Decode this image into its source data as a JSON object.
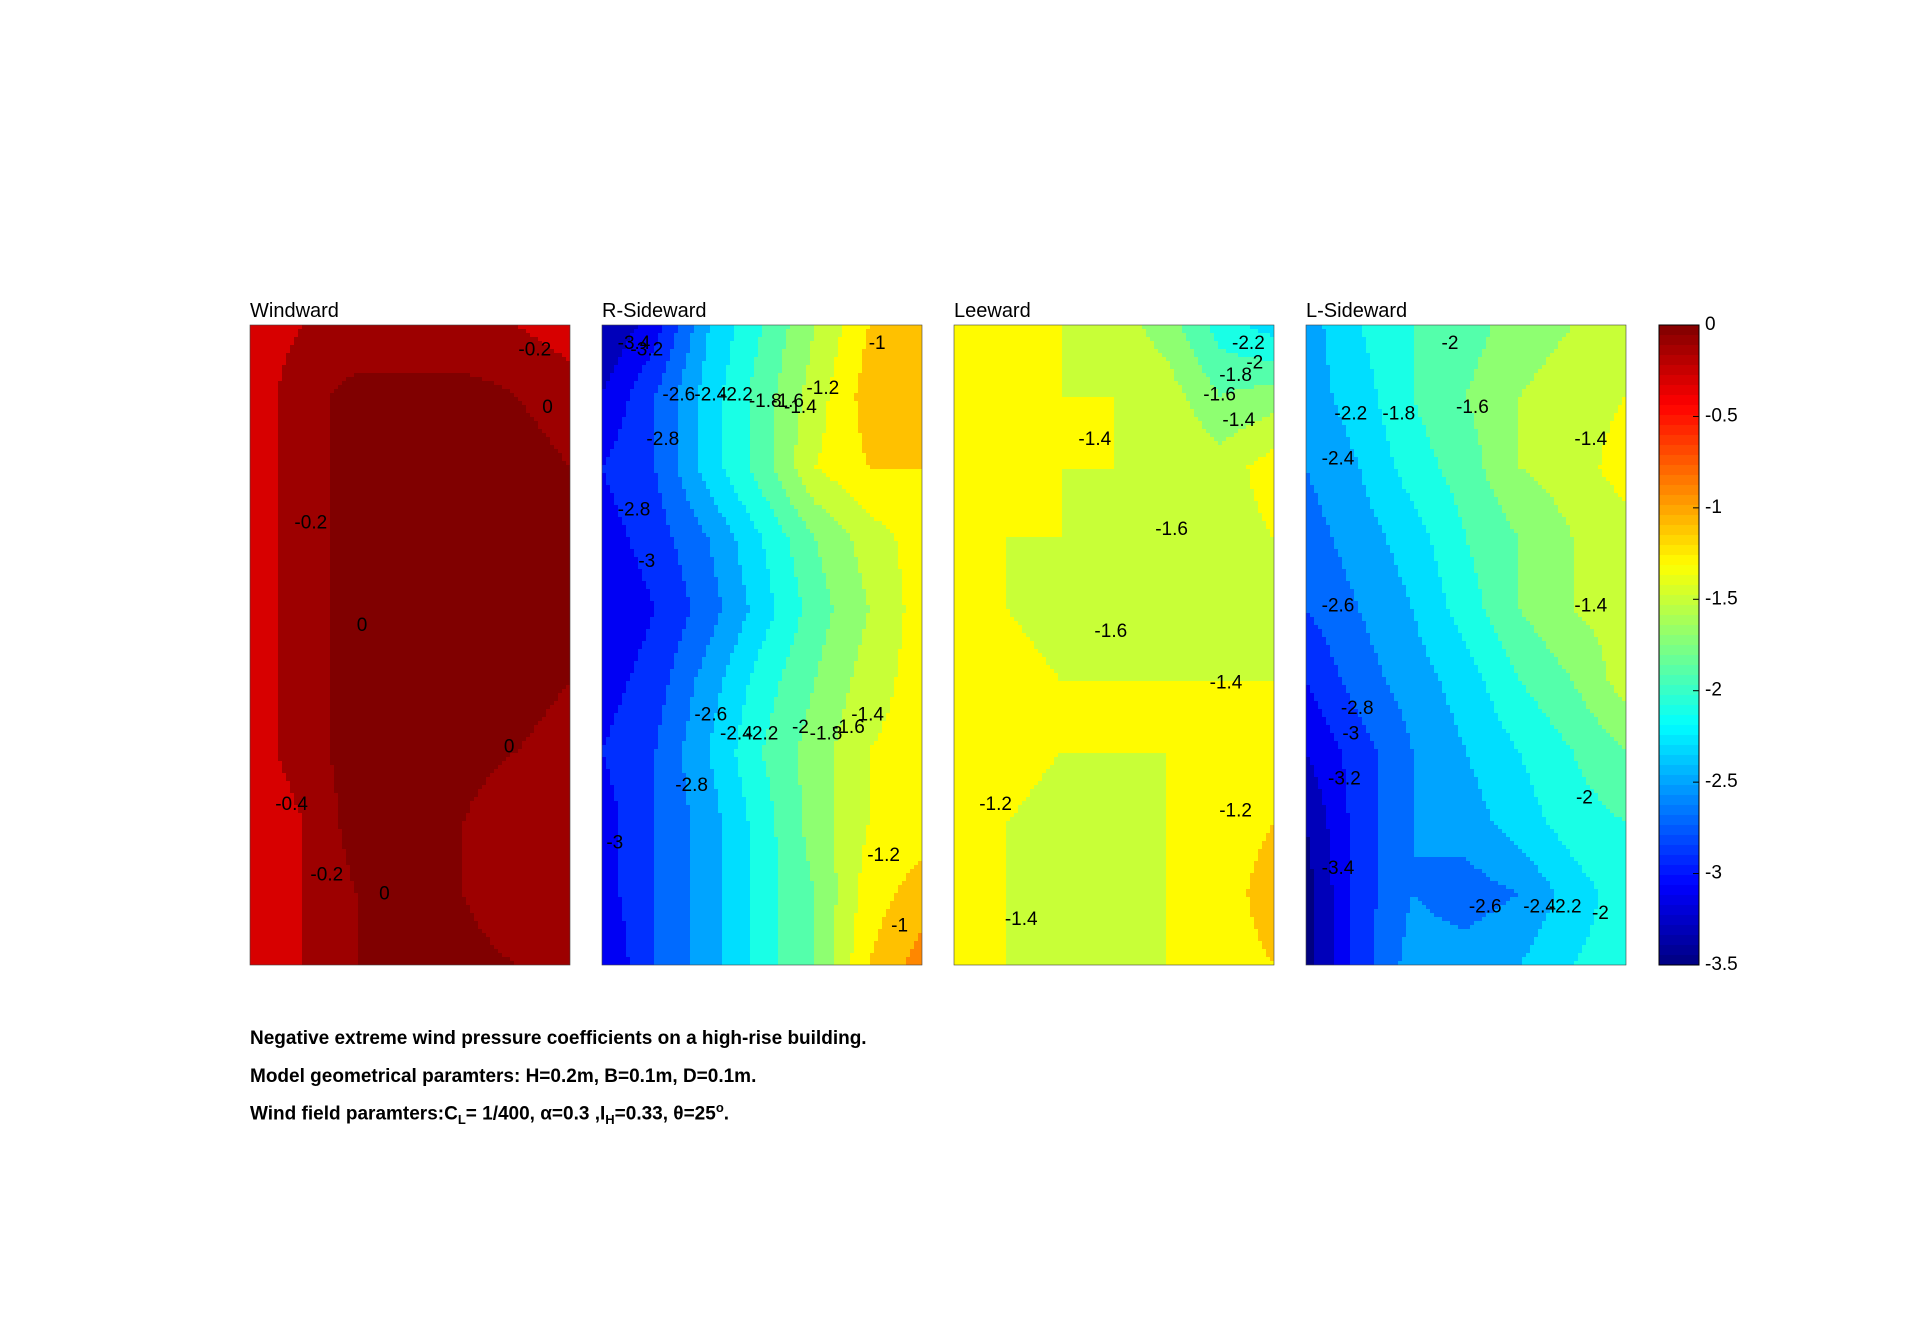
{
  "chart_data": {
    "type": "heatmap",
    "colorbar": {
      "min": -3.5,
      "max": 0,
      "ticks": [
        0,
        -0.5,
        -1,
        -1.5,
        -2,
        -2.5,
        -3,
        -3.5
      ],
      "tick_labels": [
        "0",
        "-0.5",
        "-1",
        "-1.5",
        "-2",
        "-2.5",
        "-3",
        "-3.5"
      ],
      "colormap": "jet"
    },
    "panels": [
      {
        "title": "Windward",
        "grid": [
          [
            -0.3,
            -0.2,
            -0.2,
            -0.2,
            -0.2,
            -0.2,
            -0.3
          ],
          [
            -0.3,
            -0.1,
            0.1,
            0.1,
            0.1,
            0.0,
            -0.1
          ],
          [
            -0.3,
            -0.1,
            0.1,
            0.1,
            0.1,
            0.1,
            0.0
          ],
          [
            -0.3,
            -0.1,
            0.1,
            0.1,
            0.1,
            0.1,
            0.0
          ],
          [
            -0.3,
            -0.1,
            0.1,
            0.1,
            0.1,
            0.1,
            0.0
          ],
          [
            -0.3,
            -0.1,
            0.1,
            0.1,
            0.1,
            0.1,
            0.0
          ],
          [
            -0.3,
            -0.1,
            0.1,
            0.1,
            0.1,
            0.0,
            -0.1
          ],
          [
            -0.4,
            -0.2,
            0.1,
            0.1,
            0.0,
            -0.2,
            -0.2
          ],
          [
            -0.4,
            -0.2,
            0.0,
            0.1,
            0.0,
            -0.2,
            -0.2
          ],
          [
            -0.3,
            -0.2,
            0.0,
            0.1,
            0.1,
            0.0,
            -0.1
          ]
        ],
        "contour_labels": [
          {
            "text": "-0.2",
            "x": 0.89,
            "y": 0.04
          },
          {
            "text": "0",
            "x": 0.93,
            "y": 0.13
          },
          {
            "text": "-0.2",
            "x": 0.19,
            "y": 0.31
          },
          {
            "text": "0",
            "x": 0.35,
            "y": 0.47
          },
          {
            "text": "0",
            "x": 0.81,
            "y": 0.66
          },
          {
            "text": "-0.4",
            "x": 0.13,
            "y": 0.75
          },
          {
            "text": "-0.2",
            "x": 0.24,
            "y": 0.86
          },
          {
            "text": "0",
            "x": 0.42,
            "y": 0.89
          }
        ]
      },
      {
        "title": "R-Sideward",
        "grid": [
          [
            -3.4,
            -3.1,
            -2.4,
            -2.0,
            -1.6,
            -1.2,
            -1.0
          ],
          [
            -3.2,
            -2.8,
            -2.3,
            -1.9,
            -1.5,
            -1.1,
            -1.0
          ],
          [
            -3.0,
            -2.8,
            -2.3,
            -1.9,
            -1.4,
            -1.2,
            -1.2
          ],
          [
            -3.1,
            -2.9,
            -2.6,
            -2.2,
            -1.8,
            -1.5,
            -1.3
          ],
          [
            -3.2,
            -3.0,
            -2.7,
            -2.3,
            -1.9,
            -1.6,
            -1.3
          ],
          [
            -3.1,
            -2.9,
            -2.5,
            -2.1,
            -1.8,
            -1.5,
            -1.3
          ],
          [
            -3.0,
            -2.8,
            -2.4,
            -2.0,
            -1.7,
            -1.4,
            -1.3
          ],
          [
            -3.1,
            -2.8,
            -2.5,
            -2.1,
            -1.7,
            -1.4,
            -1.3
          ],
          [
            -3.1,
            -2.8,
            -2.5,
            -2.1,
            -1.8,
            -1.3,
            -1.1
          ],
          [
            -3.2,
            -2.8,
            -2.5,
            -2.1,
            -1.8,
            -1.2,
            -0.9
          ]
        ],
        "contour_labels": [
          {
            "text": "-3.4",
            "x": 0.1,
            "y": 0.03
          },
          {
            "text": "-3.2",
            "x": 0.14,
            "y": 0.04
          },
          {
            "text": "-2.6",
            "x": 0.24,
            "y": 0.11
          },
          {
            "text": "-2.4",
            "x": 0.34,
            "y": 0.11
          },
          {
            "text": "-2.2",
            "x": 0.42,
            "y": 0.11
          },
          {
            "text": "-1.8",
            "x": 0.51,
            "y": 0.12
          },
          {
            "text": "-1.6",
            "x": 0.58,
            "y": 0.12
          },
          {
            "text": "-1.4",
            "x": 0.62,
            "y": 0.13
          },
          {
            "text": "-1.2",
            "x": 0.69,
            "y": 0.1
          },
          {
            "text": "-1",
            "x": 0.86,
            "y": 0.03
          },
          {
            "text": "-2.8",
            "x": 0.19,
            "y": 0.18
          },
          {
            "text": "-2.8",
            "x": 0.1,
            "y": 0.29
          },
          {
            "text": "-3",
            "x": 0.14,
            "y": 0.37
          },
          {
            "text": "-2.6",
            "x": 0.34,
            "y": 0.61
          },
          {
            "text": "-2.4",
            "x": 0.42,
            "y": 0.64
          },
          {
            "text": "-2.2",
            "x": 0.5,
            "y": 0.64
          },
          {
            "text": "-2",
            "x": 0.62,
            "y": 0.63
          },
          {
            "text": "-1.8",
            "x": 0.7,
            "y": 0.64
          },
          {
            "text": "-1.6",
            "x": 0.77,
            "y": 0.63
          },
          {
            "text": "-1.4",
            "x": 0.83,
            "y": 0.61
          },
          {
            "text": "-2.8",
            "x": 0.28,
            "y": 0.72
          },
          {
            "text": "-3",
            "x": 0.04,
            "y": 0.81
          },
          {
            "text": "-1.2",
            "x": 0.88,
            "y": 0.83
          },
          {
            "text": "-1",
            "x": 0.93,
            "y": 0.94
          }
        ]
      },
      {
        "title": "Leeward",
        "grid": [
          [
            -1.4,
            -1.4,
            -1.4,
            -1.5,
            -1.7,
            -2.1,
            -2.3
          ],
          [
            -1.4,
            -1.4,
            -1.4,
            -1.4,
            -1.5,
            -1.8,
            -1.7
          ],
          [
            -1.3,
            -1.4,
            -1.4,
            -1.4,
            -1.4,
            -1.5,
            -1.3
          ],
          [
            -1.3,
            -1.4,
            -1.4,
            -1.5,
            -1.6,
            -1.5,
            -1.4
          ],
          [
            -1.3,
            -1.4,
            -1.5,
            -1.6,
            -1.5,
            -1.5,
            -1.5
          ],
          [
            -1.3,
            -1.3,
            -1.4,
            -1.4,
            -1.4,
            -1.4,
            -1.4
          ],
          [
            -1.2,
            -1.3,
            -1.4,
            -1.4,
            -1.4,
            -1.4,
            -1.4
          ],
          [
            -1.2,
            -1.4,
            -1.5,
            -1.5,
            -1.4,
            -1.3,
            -1.2
          ],
          [
            -1.2,
            -1.4,
            -1.5,
            -1.5,
            -1.4,
            -1.3,
            -1.1
          ],
          [
            -1.3,
            -1.4,
            -1.5,
            -1.4,
            -1.4,
            -1.3,
            -1.2
          ]
        ],
        "contour_labels": [
          {
            "text": "-2.2",
            "x": 0.92,
            "y": 0.03
          },
          {
            "text": "-2",
            "x": 0.94,
            "y": 0.06
          },
          {
            "text": "-1.8",
            "x": 0.88,
            "y": 0.08
          },
          {
            "text": "-1.6",
            "x": 0.83,
            "y": 0.11
          },
          {
            "text": "-1.4",
            "x": 0.89,
            "y": 0.15
          },
          {
            "text": "-1.4",
            "x": 0.44,
            "y": 0.18
          },
          {
            "text": "-1.6",
            "x": 0.68,
            "y": 0.32
          },
          {
            "text": "-1.6",
            "x": 0.49,
            "y": 0.48
          },
          {
            "text": "-1.4",
            "x": 0.85,
            "y": 0.56
          },
          {
            "text": "-1.2",
            "x": 0.13,
            "y": 0.75
          },
          {
            "text": "-1.2",
            "x": 0.88,
            "y": 0.76
          },
          {
            "text": "-1.4",
            "x": 0.21,
            "y": 0.93
          }
        ]
      },
      {
        "title": "L-Sideward",
        "grid": [
          [
            -2.5,
            -2.2,
            -2.0,
            -1.9,
            -1.7,
            -1.6,
            -1.5
          ],
          [
            -2.5,
            -2.3,
            -2.0,
            -1.8,
            -1.6,
            -1.5,
            -1.4
          ],
          [
            -2.6,
            -2.4,
            -2.1,
            -1.9,
            -1.6,
            -1.5,
            -1.3
          ],
          [
            -2.7,
            -2.5,
            -2.3,
            -2.0,
            -1.8,
            -1.6,
            -1.5
          ],
          [
            -2.8,
            -2.6,
            -2.4,
            -2.1,
            -1.8,
            -1.6,
            -1.5
          ],
          [
            -3.0,
            -2.7,
            -2.5,
            -2.3,
            -2.0,
            -1.8,
            -1.5
          ],
          [
            -3.2,
            -2.9,
            -2.6,
            -2.4,
            -2.2,
            -2.0,
            -1.8
          ],
          [
            -3.4,
            -2.9,
            -2.6,
            -2.5,
            -2.3,
            -2.1,
            -2.0
          ],
          [
            -3.5,
            -2.9,
            -2.6,
            -2.7,
            -2.6,
            -2.3,
            -2.1
          ],
          [
            -3.5,
            -2.9,
            -2.5,
            -2.5,
            -2.4,
            -2.2,
            -2.1
          ]
        ],
        "contour_labels": [
          {
            "text": "-2",
            "x": 0.45,
            "y": 0.03
          },
          {
            "text": "-2.2",
            "x": 0.14,
            "y": 0.14
          },
          {
            "text": "-1.8",
            "x": 0.29,
            "y": 0.14
          },
          {
            "text": "-1.6",
            "x": 0.52,
            "y": 0.13
          },
          {
            "text": "-1.4",
            "x": 0.89,
            "y": 0.18
          },
          {
            "text": "-2.4",
            "x": 0.1,
            "y": 0.21
          },
          {
            "text": "-2.6",
            "x": 0.1,
            "y": 0.44
          },
          {
            "text": "-1.4",
            "x": 0.89,
            "y": 0.44
          },
          {
            "text": "-2.8",
            "x": 0.16,
            "y": 0.6
          },
          {
            "text": "-3",
            "x": 0.14,
            "y": 0.64
          },
          {
            "text": "-3.2",
            "x": 0.12,
            "y": 0.71
          },
          {
            "text": "-2",
            "x": 0.87,
            "y": 0.74
          },
          {
            "text": "-3.4",
            "x": 0.1,
            "y": 0.85
          },
          {
            "text": "-2.6",
            "x": 0.56,
            "y": 0.91
          },
          {
            "text": "-2.4",
            "x": 0.73,
            "y": 0.91
          },
          {
            "text": "-2.2",
            "x": 0.81,
            "y": 0.91
          },
          {
            "text": "-2",
            "x": 0.92,
            "y": 0.92
          }
        ]
      }
    ]
  },
  "caption": {
    "line1": "Negative extreme wind pressure coefficients on a high-rise building.",
    "line2": "Model geometrical paramters: H=0.2m, B=0.1m, D=0.1m.",
    "line3_prefix": "Wind field paramters:C",
    "line3_sub1": "L",
    "line3_mid1": "= 1/400, α=0.3 ,I",
    "line3_sub2": "H",
    "line3_mid2": "=0.33, θ=25",
    "line3_sup": "o",
    "line3_suffix": "."
  }
}
